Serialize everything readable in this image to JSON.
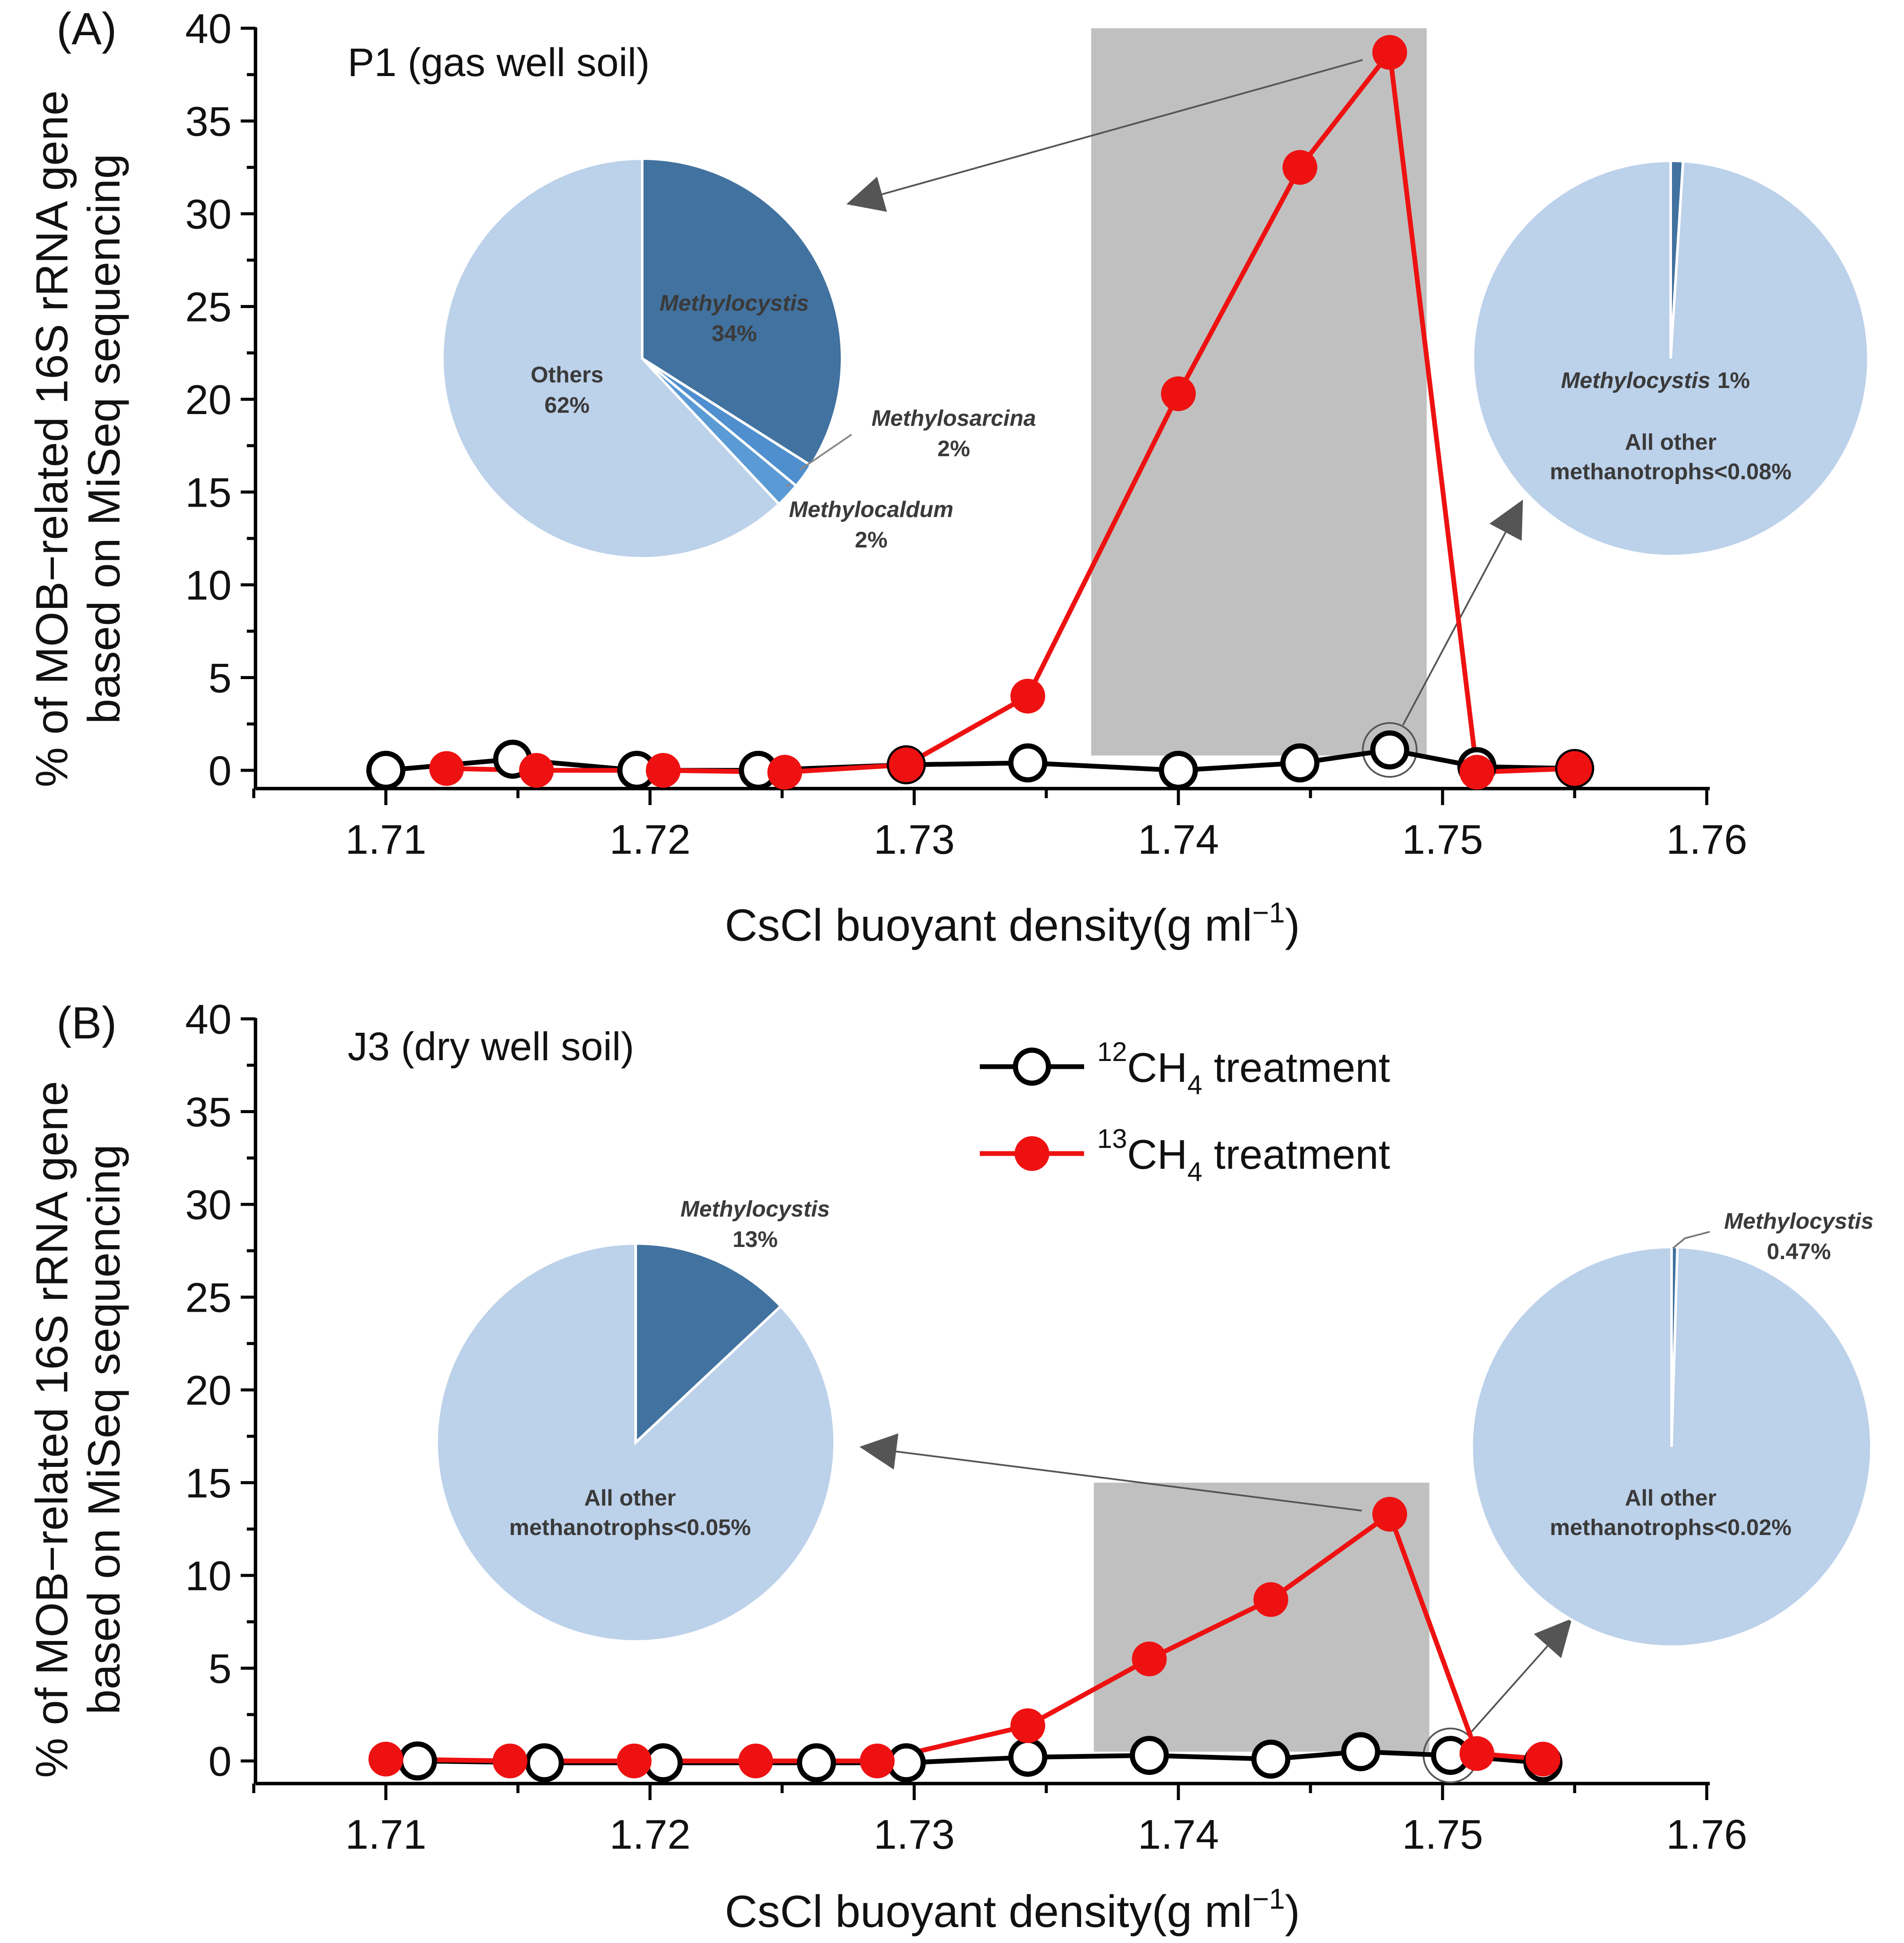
{
  "chart_data": [
    {
      "type": "line",
      "panel_label": "(A)",
      "title": "P1 (gas well soil)",
      "xlabel": "CsCl buoyant density(g ml",
      "xlabel_sup": "−1",
      "xlabel_close": ")",
      "ylabel": [
        "% of MOB−related 16S rRNA gene",
        "based on MiSeq sequencing"
      ],
      "xlim": [
        1.705,
        1.76
      ],
      "ylim": [
        -1,
        40
      ],
      "x_ticks": [
        "1.71",
        "1.72",
        "1.73",
        "1.74",
        "1.75",
        "1.76"
      ],
      "y_ticks": [
        "0",
        "5",
        "10",
        "15",
        "20",
        "25",
        "30",
        "35",
        "40"
      ],
      "shaded_region": {
        "x": [
          1.7367,
          1.7494
        ],
        "y": [
          0.8,
          40
        ]
      },
      "series": [
        {
          "key": "12CH4",
          "color": "#000000",
          "marker": "open-circle",
          "x": [
            1.71,
            1.7148,
            1.7195,
            1.7241,
            1.7297,
            1.7343,
            1.74,
            1.7446,
            1.748,
            1.7513,
            1.755
          ],
          "y": [
            0.0,
            0.6,
            0.0,
            0.0,
            0.3,
            0.4,
            0.0,
            0.4,
            1.1,
            0.2,
            0.1
          ]
        },
        {
          "key": "13CH4",
          "color": "#ee1111",
          "marker": "filled-circle",
          "x": [
            1.7123,
            1.7157,
            1.7205,
            1.7251,
            1.7297,
            1.7343,
            1.74,
            1.7446,
            1.748,
            1.7513,
            1.755
          ],
          "y": [
            0.1,
            0.0,
            0.0,
            -0.1,
            0.3,
            4.0,
            20.3,
            32.5,
            38.7,
            -0.1,
            0.1
          ]
        }
      ],
      "pies": [
        {
          "source_point": [
            1.748,
            38.7
          ],
          "slices": [
            {
              "label": "Methylocystis",
              "value": 34,
              "text": "34%",
              "color": "#42729f"
            },
            {
              "label": "Methylosarcina",
              "value": 2,
              "text": "2%",
              "color": "#4f8fcf"
            },
            {
              "label": "Methylocaldum",
              "value": 2,
              "text": "2%",
              "color": "#5b9bd5"
            },
            {
              "label": "Others",
              "value": 62,
              "text": "62%",
              "color": "#bcd1ea"
            }
          ]
        },
        {
          "source_point": [
            1.748,
            1.1
          ],
          "slices": [
            {
              "label": "Methylocystis",
              "value": 1,
              "text": "1%",
              "color": "#42729f"
            },
            {
              "label": "All other methanotrophs<0.08%",
              "value": 99,
              "text": "",
              "color": "#bcd1ea"
            }
          ]
        }
      ]
    },
    {
      "type": "line",
      "panel_label": "(B)",
      "title": "J3 (dry well soil)",
      "xlabel": "CsCl buoyant density(g ml",
      "xlabel_sup": "−1",
      "xlabel_close": ")",
      "ylabel": [
        "% of MOB−related 16S rRNA gene",
        "based on MiSeq sequencing"
      ],
      "xlim": [
        1.705,
        1.76
      ],
      "ylim": [
        -1,
        40
      ],
      "x_ticks": [
        "1.71",
        "1.72",
        "1.73",
        "1.74",
        "1.75",
        "1.76"
      ],
      "y_ticks": [
        "0",
        "5",
        "10",
        "15",
        "20",
        "25",
        "30",
        "35",
        "40"
      ],
      "shaded_region": {
        "x": [
          1.7368,
          1.7495
        ],
        "y": [
          0.5,
          15
        ]
      },
      "legend": {
        "position": "upper-center",
        "entries": [
          {
            "sup": "12",
            "main": "CH",
            "sub": "4",
            "rest": " treatment",
            "color": "#000000",
            "marker": "open-circle"
          },
          {
            "sup": "13",
            "main": "CH",
            "sub": "4",
            "rest": " treatment",
            "color": "#ee1111",
            "marker": "filled-circle"
          }
        ]
      },
      "series": [
        {
          "key": "12CH4",
          "color": "#000000",
          "marker": "open-circle",
          "x": [
            1.7112,
            1.716,
            1.7205,
            1.7263,
            1.7297,
            1.7343,
            1.7389,
            1.7435,
            1.7469,
            1.7503,
            1.7538
          ],
          "y": [
            0.0,
            -0.1,
            -0.1,
            -0.1,
            -0.1,
            0.2,
            0.3,
            0.1,
            0.5,
            0.3,
            -0.1
          ]
        },
        {
          "key": "13CH4",
          "color": "#ee1111",
          "marker": "filled-circle",
          "x": [
            1.71,
            1.7147,
            1.7194,
            1.724,
            1.7286,
            1.7343,
            1.7389,
            1.7435,
            1.748,
            1.7513,
            1.7538
          ],
          "y": [
            0.1,
            0.0,
            0.0,
            0.0,
            0.0,
            1.9,
            5.5,
            8.7,
            13.3,
            0.4,
            0.1
          ]
        }
      ],
      "pies": [
        {
          "source_point": [
            1.748,
            13.3
          ],
          "slices": [
            {
              "label": "Methylocystis",
              "value": 13,
              "text": "13%",
              "color": "#42729f"
            },
            {
              "label": "All other methanotrophs<0.05%",
              "value": 87,
              "text": "",
              "color": "#bcd1ea"
            }
          ]
        },
        {
          "source_point": [
            1.7503,
            0.3
          ],
          "slices": [
            {
              "label": "Methylocystis",
              "value": 0.47,
              "text": "0.47%",
              "color": "#42729f"
            },
            {
              "label": "All other methanotrophs<0.02%",
              "value": 99.53,
              "text": "",
              "color": "#bcd1ea"
            }
          ]
        }
      ]
    }
  ]
}
